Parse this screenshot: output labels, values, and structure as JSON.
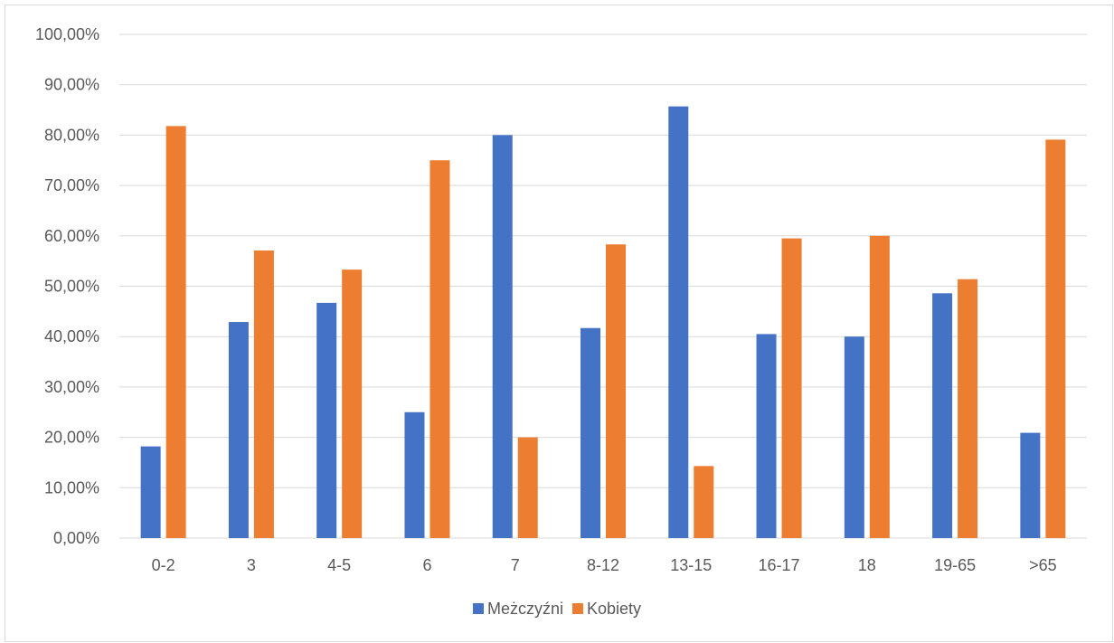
{
  "chart_data": {
    "type": "bar",
    "title": "",
    "xlabel": "",
    "ylabel": "",
    "ylim": [
      0,
      100
    ],
    "y_tick_values": [
      0,
      10,
      20,
      30,
      40,
      50,
      60,
      70,
      80,
      90,
      100
    ],
    "y_tick_labels": [
      "0,00%",
      "10,00%",
      "20,00%",
      "30,00%",
      "40,00%",
      "50,00%",
      "60,00%",
      "70,00%",
      "80,00%",
      "90,00%",
      "100,00%"
    ],
    "grid": true,
    "legend_position": "bottom",
    "categories": [
      "0-2",
      "3",
      "4-5",
      "6",
      "7",
      "8-12",
      "13-15",
      "16-17",
      "18",
      "19-65",
      ">65"
    ],
    "series": [
      {
        "name": "Meżczyźni",
        "color": "#4472C4",
        "values": [
          18.2,
          42.9,
          46.7,
          25.0,
          80.0,
          41.7,
          85.7,
          40.5,
          40.0,
          48.6,
          20.9
        ]
      },
      {
        "name": "Kobiety",
        "color": "#ED7D31",
        "values": [
          81.8,
          57.1,
          53.3,
          75.0,
          20.0,
          58.3,
          14.3,
          59.5,
          60.0,
          51.4,
          79.1
        ]
      }
    ]
  }
}
